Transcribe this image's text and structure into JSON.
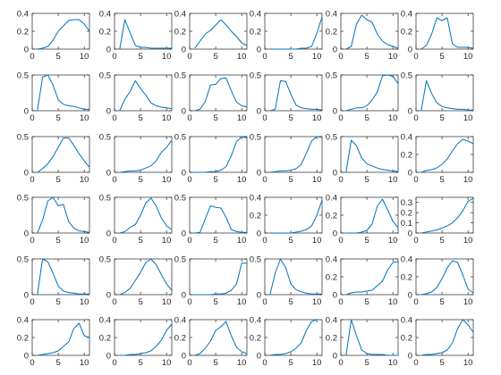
{
  "chart_data": {
    "type": "line",
    "layout": {
      "rows": 6,
      "cols": 6
    },
    "line_color": "#0072BD",
    "x": [
      1,
      2,
      3,
      4,
      5,
      6,
      7,
      8,
      9,
      10,
      11
    ],
    "xlim": [
      0,
      11
    ],
    "xticks": [
      0,
      5,
      10
    ],
    "xtick_labels": [
      "0",
      "5",
      "10"
    ],
    "panels": [
      {
        "ylim": [
          0,
          0.4
        ],
        "yticks": [
          0,
          0.2,
          0.4
        ],
        "ytick_labels": [
          "0",
          "0.2",
          "0.4"
        ],
        "values": [
          0,
          0.01,
          0.03,
          0.1,
          0.2,
          0.26,
          0.32,
          0.33,
          0.33,
          0.28,
          0.2
        ]
      },
      {
        "ylim": [
          0,
          0.4
        ],
        "yticks": [
          0,
          0.2,
          0.4
        ],
        "ytick_labels": [
          "0",
          "0.2",
          "0.4"
        ],
        "values": [
          0,
          0.33,
          0.18,
          0.04,
          0.02,
          0.02,
          0.01,
          0.01,
          0.01,
          0.01,
          0.01
        ]
      },
      {
        "ylim": [
          0,
          0.4
        ],
        "yticks": [
          0,
          0.2,
          0.4
        ],
        "ytick_labels": [
          "0",
          "0.2",
          "0.4"
        ],
        "values": [
          0.01,
          0.09,
          0.17,
          0.21,
          0.27,
          0.33,
          0.27,
          0.2,
          0.14,
          0.07,
          0.04
        ]
      },
      {
        "ylim": [
          0,
          0.4
        ],
        "yticks": [
          0,
          0.2,
          0.4
        ],
        "ytick_labels": [
          "0",
          "0.2",
          "0.4"
        ],
        "values": [
          0,
          0,
          0,
          0,
          0,
          0,
          0.01,
          0.01,
          0.03,
          0.18,
          0.36
        ]
      },
      {
        "ylim": [
          0,
          0.4
        ],
        "yticks": [
          0,
          0.2,
          0.4
        ],
        "ytick_labels": [
          "0",
          "0.2",
          "0.4"
        ],
        "values": [
          0,
          0.03,
          0.28,
          0.38,
          0.33,
          0.3,
          0.17,
          0.09,
          0.05,
          0.03,
          0.01
        ]
      },
      {
        "ylim": [
          0,
          0.4
        ],
        "yticks": [
          0,
          0.2,
          0.4
        ],
        "ytick_labels": [
          "0",
          "0.2",
          "0.4"
        ],
        "values": [
          0,
          0.04,
          0.17,
          0.35,
          0.32,
          0.35,
          0.06,
          0.02,
          0.02,
          0.02,
          0.01
        ]
      },
      {
        "ylim": [
          0,
          0.5
        ],
        "yticks": [
          0,
          0.5
        ],
        "ytick_labels": [
          "0",
          "0.5"
        ],
        "values": [
          0,
          0.47,
          0.52,
          0.36,
          0.15,
          0.09,
          0.07,
          0.06,
          0.04,
          0.02,
          0.02
        ]
      },
      {
        "ylim": [
          0,
          0.5
        ],
        "yticks": [
          0,
          0.5
        ],
        "ytick_labels": [
          "0",
          "0.5"
        ],
        "values": [
          0,
          0.16,
          0.27,
          0.42,
          0.31,
          0.22,
          0.11,
          0.07,
          0.05,
          0.04,
          0.03
        ]
      },
      {
        "ylim": [
          0,
          0.5
        ],
        "yticks": [
          0,
          0.5
        ],
        "ytick_labels": [
          "0",
          "0.5"
        ],
        "values": [
          0,
          0.02,
          0.13,
          0.36,
          0.37,
          0.45,
          0.46,
          0.28,
          0.12,
          0.07,
          0.05
        ]
      },
      {
        "ylim": [
          0,
          0.5
        ],
        "yticks": [
          0,
          0.5
        ],
        "ytick_labels": [
          "0",
          "0.5"
        ],
        "values": [
          0,
          0.02,
          0.42,
          0.41,
          0.23,
          0.08,
          0.04,
          0.03,
          0.02,
          0.02,
          0.01
        ]
      },
      {
        "ylim": [
          0,
          0.5
        ],
        "yticks": [
          0,
          0.5
        ],
        "ytick_labels": [
          "0",
          "0.5"
        ],
        "values": [
          0,
          0.02,
          0.04,
          0.04,
          0.07,
          0.15,
          0.26,
          0.49,
          0.55,
          0.48,
          0.38
        ]
      },
      {
        "ylim": [
          0,
          0.5
        ],
        "yticks": [
          0,
          0.5
        ],
        "ytick_labels": [
          "0",
          "0.5"
        ],
        "values": [
          0,
          0.42,
          0.24,
          0.11,
          0.06,
          0.04,
          0.03,
          0.02,
          0.02,
          0.01,
          0.01
        ]
      },
      {
        "ylim": [
          0,
          0.5
        ],
        "yticks": [
          0,
          0.5
        ],
        "ytick_labels": [
          "0",
          "0.5"
        ],
        "values": [
          0,
          0.05,
          0.12,
          0.22,
          0.35,
          0.48,
          0.48,
          0.38,
          0.26,
          0.16,
          0.07
        ]
      },
      {
        "ylim": [
          0,
          0.5
        ],
        "yticks": [
          0,
          0.5
        ],
        "ytick_labels": [
          "0",
          "0.5"
        ],
        "values": [
          0,
          0.01,
          0.02,
          0.02,
          0.03,
          0.06,
          0.09,
          0.16,
          0.28,
          0.35,
          0.45
        ]
      },
      {
        "ylim": [
          0,
          0.5
        ],
        "yticks": [
          0,
          0.5
        ],
        "ytick_labels": [
          "0",
          "0.5"
        ],
        "values": [
          0,
          0,
          0,
          0.01,
          0.01,
          0.03,
          0.08,
          0.23,
          0.43,
          0.52,
          0.48
        ]
      },
      {
        "ylim": [
          0,
          0.5
        ],
        "yticks": [
          0,
          0.5
        ],
        "ytick_labels": [
          "0",
          "0.5"
        ],
        "values": [
          0,
          0.01,
          0.02,
          0.02,
          0.03,
          0.05,
          0.11,
          0.27,
          0.44,
          0.54,
          0.49
        ]
      },
      {
        "ylim": [
          0,
          0.5
        ],
        "yticks": [
          0,
          0.5
        ],
        "ytick_labels": [
          "0",
          "0.5"
        ],
        "values": [
          0,
          0.45,
          0.37,
          0.2,
          0.12,
          0.09,
          0.06,
          0.04,
          0.03,
          0.02,
          0.01
        ]
      },
      {
        "ylim": [
          0,
          0.4
        ],
        "yticks": [
          0,
          0.2,
          0.4
        ],
        "ytick_labels": [
          "0",
          "0.2",
          "0.4"
        ],
        "values": [
          0,
          0.02,
          0.03,
          0.05,
          0.09,
          0.15,
          0.24,
          0.32,
          0.37,
          0.35,
          0.32
        ]
      },
      {
        "ylim": [
          0,
          0.5
        ],
        "yticks": [
          0,
          0.5
        ],
        "ytick_labels": [
          "0",
          "0.5"
        ],
        "values": [
          0,
          0.18,
          0.45,
          0.55,
          0.38,
          0.4,
          0.16,
          0.07,
          0.03,
          0.02,
          0.01
        ]
      },
      {
        "ylim": [
          0,
          0.5
        ],
        "yticks": [
          0,
          0.5
        ],
        "ytick_labels": [
          "0",
          "0.5"
        ],
        "values": [
          0,
          0.02,
          0.08,
          0.12,
          0.25,
          0.42,
          0.49,
          0.38,
          0.21,
          0.1,
          0.05
        ]
      },
      {
        "ylim": [
          0,
          0.5
        ],
        "yticks": [
          0,
          0.5
        ],
        "ytick_labels": [
          "0",
          "0.5"
        ],
        "values": [
          0,
          0.01,
          0.2,
          0.38,
          0.36,
          0.35,
          0.22,
          0.05,
          0.02,
          0.01,
          0.01
        ]
      },
      {
        "ylim": [
          0,
          0.4
        ],
        "yticks": [
          0,
          0.2,
          0.4
        ],
        "ytick_labels": [
          "0",
          "0.2",
          "0.4"
        ],
        "values": [
          0,
          0,
          0,
          0,
          0,
          0.01,
          0.02,
          0.04,
          0.08,
          0.2,
          0.37
        ]
      },
      {
        "ylim": [
          0,
          0.4
        ],
        "yticks": [
          0,
          0.2,
          0.4
        ],
        "ytick_labels": [
          "0",
          "0.2",
          "0.4"
        ],
        "values": [
          0,
          0,
          0,
          0.01,
          0.03,
          0.1,
          0.3,
          0.38,
          0.26,
          0.13,
          0.06
        ]
      },
      {
        "ylim": [
          0,
          0.35
        ],
        "yticks": [
          0,
          0.1,
          0.2,
          0.3
        ],
        "ytick_labels": [
          "0",
          "0.1",
          "0.2",
          "0.3"
        ],
        "values": [
          0,
          0.01,
          0.02,
          0.03,
          0.05,
          0.07,
          0.1,
          0.15,
          0.22,
          0.31,
          0.34
        ]
      },
      {
        "ylim": [
          0,
          0.5
        ],
        "yticks": [
          0,
          0.5
        ],
        "ytick_labels": [
          "0",
          "0.5"
        ],
        "values": [
          0,
          0.54,
          0.46,
          0.3,
          0.12,
          0.05,
          0.03,
          0.02,
          0.01,
          0.01,
          0.01
        ]
      },
      {
        "ylim": [
          0,
          0.5
        ],
        "yticks": [
          0,
          0.5
        ],
        "ytick_labels": [
          "0",
          "0.5"
        ],
        "values": [
          0,
          0.03,
          0.09,
          0.2,
          0.31,
          0.45,
          0.5,
          0.42,
          0.28,
          0.15,
          0.06
        ]
      },
      {
        "ylim": [
          0,
          0.5
        ],
        "yticks": [
          0,
          0.5
        ],
        "ytick_labels": [
          "0",
          "0.5"
        ],
        "values": [
          0,
          0,
          0,
          0,
          0.01,
          0.01,
          0.02,
          0.06,
          0.15,
          0.44,
          0.44
        ]
      },
      {
        "ylim": [
          0,
          0.5
        ],
        "yticks": [
          0,
          0.5
        ],
        "ytick_labels": [
          "0",
          "0.5"
        ],
        "values": [
          0,
          0.3,
          0.52,
          0.38,
          0.15,
          0.07,
          0.04,
          0.02,
          0.01,
          0.01,
          0.01
        ]
      },
      {
        "ylim": [
          0,
          0.4
        ],
        "yticks": [
          0,
          0.2,
          0.4
        ],
        "ytick_labels": [
          "0",
          "0.2",
          "0.4"
        ],
        "values": [
          0,
          0.02,
          0.03,
          0.03,
          0.04,
          0.05,
          0.1,
          0.15,
          0.28,
          0.36,
          0.37
        ]
      },
      {
        "ylim": [
          0,
          0.4
        ],
        "yticks": [
          0,
          0.2,
          0.4
        ],
        "ytick_labels": [
          "0",
          "0.2",
          "0.4"
        ],
        "values": [
          0,
          0.01,
          0.03,
          0.08,
          0.18,
          0.3,
          0.38,
          0.36,
          0.22,
          0.06,
          0.02
        ]
      },
      {
        "ylim": [
          0,
          0.4
        ],
        "yticks": [
          0,
          0.2,
          0.4
        ],
        "ytick_labels": [
          "0",
          "0.2",
          "0.4"
        ],
        "values": [
          0,
          0.01,
          0.02,
          0.03,
          0.05,
          0.1,
          0.15,
          0.3,
          0.36,
          0.22,
          0.2
        ]
      },
      {
        "ylim": [
          0,
          0.4
        ],
        "yticks": [
          0,
          0.2,
          0.4
        ],
        "ytick_labels": [
          "0",
          "0.2",
          "0.4"
        ],
        "values": [
          0,
          0,
          0.01,
          0.01,
          0.02,
          0.03,
          0.05,
          0.1,
          0.17,
          0.28,
          0.35
        ]
      },
      {
        "ylim": [
          0,
          0.4
        ],
        "yticks": [
          0,
          0.2,
          0.4
        ],
        "ytick_labels": [
          "0",
          "0.2",
          "0.4"
        ],
        "values": [
          0,
          0.02,
          0.08,
          0.16,
          0.28,
          0.32,
          0.38,
          0.22,
          0.09,
          0.04,
          0.02
        ]
      },
      {
        "ylim": [
          0,
          0.4
        ],
        "yticks": [
          0,
          0.2,
          0.4
        ],
        "ytick_labels": [
          "0",
          "0.2",
          "0.4"
        ],
        "values": [
          0,
          0.01,
          0.01,
          0.02,
          0.04,
          0.08,
          0.14,
          0.28,
          0.38,
          0.4,
          0.4
        ]
      },
      {
        "ylim": [
          0,
          0.4
        ],
        "yticks": [
          0,
          0.2,
          0.4
        ],
        "ytick_labels": [
          "0",
          "0.2",
          "0.4"
        ],
        "values": [
          0,
          0.4,
          0.22,
          0.06,
          0.02,
          0.01,
          0.01,
          0.01,
          0,
          0,
          0
        ]
      },
      {
        "ylim": [
          0,
          0.4
        ],
        "yticks": [
          0,
          0.2,
          0.4
        ],
        "ytick_labels": [
          "0",
          "0.2",
          "0.4"
        ],
        "values": [
          0,
          0.01,
          0.01,
          0.02,
          0.03,
          0.06,
          0.14,
          0.3,
          0.4,
          0.34,
          0.26
        ]
      }
    ]
  }
}
